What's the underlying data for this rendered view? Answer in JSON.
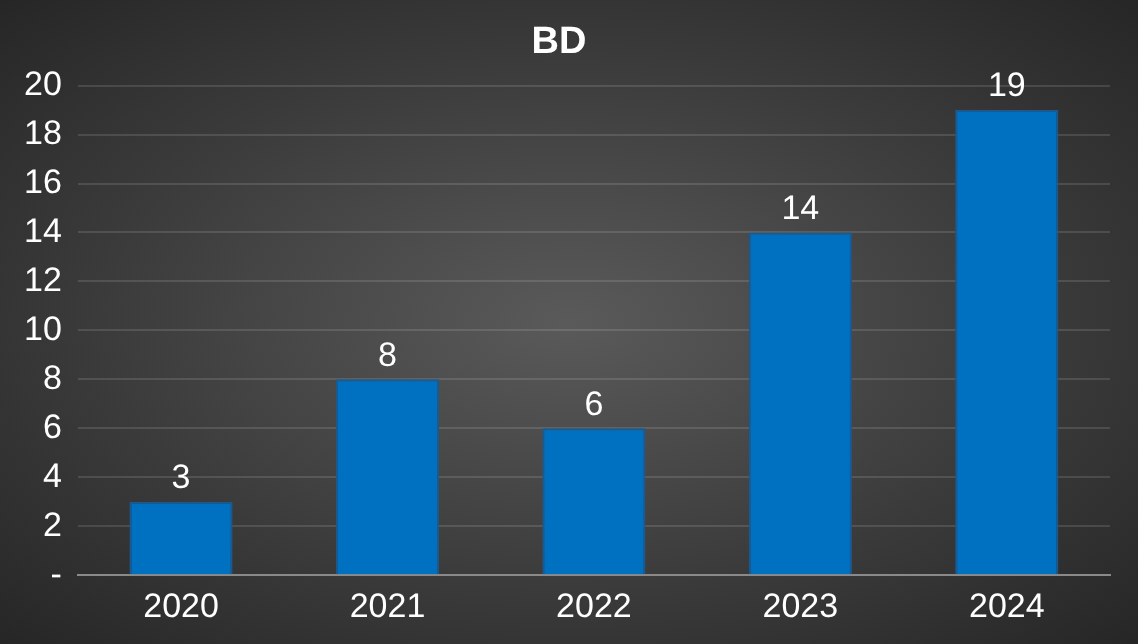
{
  "chart_data": {
    "type": "bar",
    "title": "BD",
    "categories": [
      "2020",
      "2021",
      "2022",
      "2023",
      "2024"
    ],
    "values": [
      3,
      8,
      6,
      14,
      19
    ],
    "color": "#0070c0",
    "ylim": [
      0,
      20
    ],
    "yticks": [
      {
        "value": 0,
        "label": "-"
      },
      2,
      4,
      6,
      8,
      10,
      12,
      14,
      16,
      18,
      20
    ],
    "grid": "y",
    "data_labels": true,
    "legend": false
  }
}
